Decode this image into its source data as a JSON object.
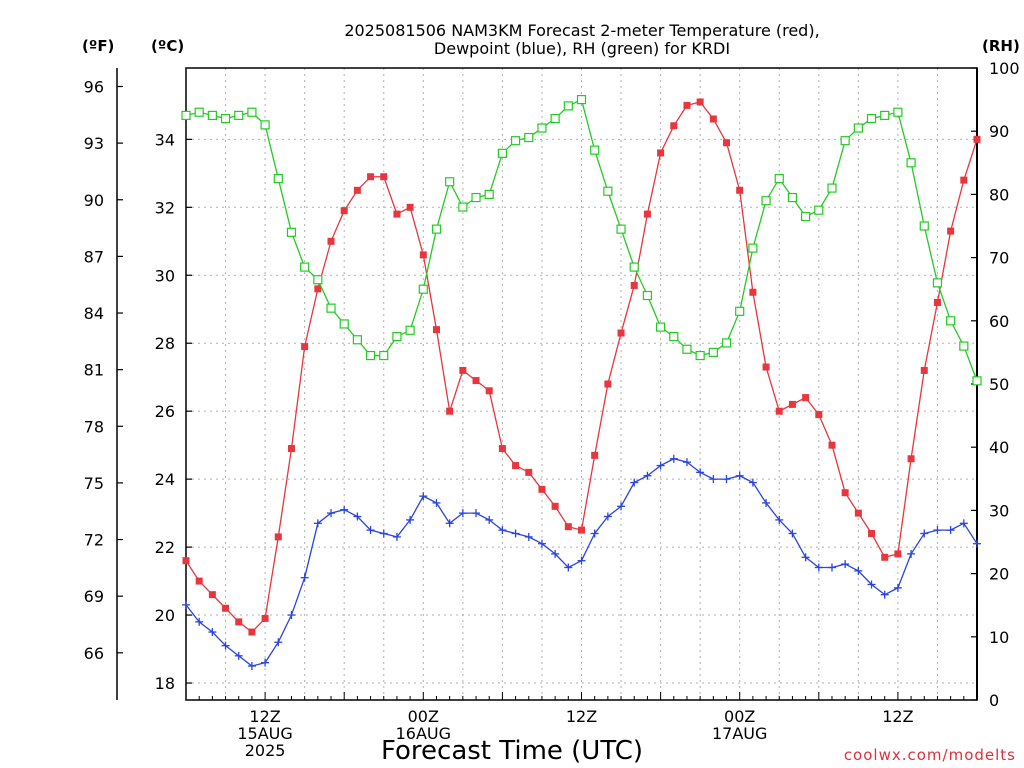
{
  "chart_data": {
    "type": "line",
    "title_line1": "2025081506 NAM3KM Forecast 2-meter Temperature (red),",
    "title_line2": "Dewpoint (blue), RH (green) for KRDI",
    "xlabel": "Forecast Time (UTC)",
    "credit": "coolwx.com/modelts",
    "unit_f": "(ºF)",
    "unit_c": "(ºC)",
    "unit_rh": "(RH)",
    "x_range_hours": [
      0,
      60
    ],
    "x_ticks": [
      {
        "hour": 6,
        "label": "12Z",
        "label2": "15AUG",
        "label3": "2025"
      },
      {
        "hour": 18,
        "label": "00Z",
        "label2": "16AUG",
        "label3": ""
      },
      {
        "hour": 30,
        "label": "12Z",
        "label2": "",
        "label3": ""
      },
      {
        "hour": 42,
        "label": "00Z",
        "label2": "17AUG",
        "label3": ""
      },
      {
        "hour": 54,
        "label": "12Z",
        "label2": "",
        "label3": ""
      }
    ],
    "ylim_c": [
      17.5,
      36.1
    ],
    "yticks_c": [
      18,
      20,
      22,
      24,
      26,
      28,
      30,
      32,
      34
    ],
    "yticks_f": [
      66,
      69,
      72,
      75,
      78,
      81,
      84,
      87,
      90,
      93,
      96
    ],
    "ylim_rh": [
      0,
      100
    ],
    "yticks_rh": [
      0,
      10,
      20,
      30,
      40,
      50,
      60,
      70,
      80,
      90,
      100
    ],
    "colors": {
      "temperature": "#e8363e",
      "dewpoint": "#2a44e0",
      "rh": "#22cc22",
      "grid": "#b0b0b0"
    },
    "series": [
      {
        "name": "Temperature (red)",
        "axis": "c",
        "marker": "filled-square",
        "x": [
          0,
          1,
          2,
          3,
          4,
          5,
          6,
          7,
          8,
          9,
          10,
          11,
          12,
          13,
          14,
          15,
          16,
          17,
          18,
          19,
          20,
          21,
          22,
          23,
          24,
          25,
          26,
          27,
          28,
          29,
          30,
          31,
          32,
          33,
          34,
          35,
          36,
          37,
          38,
          39,
          40,
          41,
          42,
          43,
          44,
          45,
          46,
          47,
          48,
          49,
          50,
          51,
          52,
          53,
          54,
          55,
          56,
          57,
          58,
          59,
          60
        ],
        "values": [
          21.6,
          21.0,
          20.6,
          20.2,
          19.8,
          19.5,
          19.9,
          22.3,
          24.9,
          27.9,
          29.6,
          31.0,
          31.9,
          32.5,
          32.9,
          32.9,
          31.8,
          32.0,
          30.6,
          28.4,
          26.0,
          27.2,
          26.9,
          26.6,
          24.9,
          24.4,
          24.2,
          23.7,
          23.2,
          22.6,
          22.5,
          24.7,
          26.8,
          28.3,
          29.7,
          31.8,
          33.6,
          34.4,
          35.0,
          35.1,
          34.6,
          33.9,
          32.5,
          29.5,
          27.3,
          26.0,
          26.2,
          26.4,
          25.9,
          25.0,
          23.6,
          23.0,
          22.4,
          21.7,
          21.8,
          24.6,
          27.2,
          29.2,
          31.3,
          32.8,
          34.0
        ]
      },
      {
        "name": "Dewpoint (blue)",
        "axis": "c",
        "marker": "plus",
        "x": [
          0,
          1,
          2,
          3,
          4,
          5,
          6,
          7,
          8,
          9,
          10,
          11,
          12,
          13,
          14,
          15,
          16,
          17,
          18,
          19,
          20,
          21,
          22,
          23,
          24,
          25,
          26,
          27,
          28,
          29,
          30,
          31,
          32,
          33,
          34,
          35,
          36,
          37,
          38,
          39,
          40,
          41,
          42,
          43,
          44,
          45,
          46,
          47,
          48,
          49,
          50,
          51,
          52,
          53,
          54,
          55,
          56,
          57,
          58,
          59,
          60
        ],
        "values": [
          20.3,
          19.8,
          19.5,
          19.1,
          18.8,
          18.5,
          18.6,
          19.2,
          20.0,
          21.1,
          22.7,
          23.0,
          23.1,
          22.9,
          22.5,
          22.4,
          22.3,
          22.8,
          23.5,
          23.3,
          22.7,
          23.0,
          23.0,
          22.8,
          22.5,
          22.4,
          22.3,
          22.1,
          21.8,
          21.4,
          21.6,
          22.4,
          22.9,
          23.2,
          23.9,
          24.1,
          24.4,
          24.6,
          24.5,
          24.2,
          24.0,
          24.0,
          24.1,
          23.9,
          23.3,
          22.8,
          22.4,
          21.7,
          21.4,
          21.4,
          21.5,
          21.3,
          20.9,
          20.6,
          20.8,
          21.8,
          22.4,
          22.5,
          22.5,
          22.7,
          22.1
        ]
      },
      {
        "name": "RH (green)",
        "axis": "rh",
        "marker": "open-square",
        "x": [
          0,
          1,
          2,
          3,
          4,
          5,
          6,
          7,
          8,
          9,
          10,
          11,
          12,
          13,
          14,
          15,
          16,
          17,
          18,
          19,
          20,
          21,
          22,
          23,
          24,
          25,
          26,
          27,
          28,
          29,
          30,
          31,
          32,
          33,
          34,
          35,
          36,
          37,
          38,
          39,
          40,
          41,
          42,
          43,
          44,
          45,
          46,
          47,
          48,
          49,
          50,
          51,
          52,
          53,
          54,
          55,
          56,
          57,
          58,
          59,
          60
        ],
        "values": [
          92.5,
          93,
          92.5,
          92,
          92.5,
          93,
          91,
          82.5,
          74,
          68.5,
          66.5,
          62,
          59.5,
          57,
          54.5,
          54.5,
          57.5,
          58.5,
          65,
          74.5,
          82,
          78,
          79.5,
          80,
          86.5,
          88.5,
          89,
          90.5,
          92,
          94,
          95,
          87,
          80.5,
          74.5,
          68.5,
          64,
          59,
          57.5,
          55.5,
          54.5,
          55,
          56.5,
          61.5,
          71.5,
          79,
          82.5,
          79.5,
          76.5,
          77.5,
          81,
          88.5,
          90.5,
          92,
          92.5,
          93,
          85,
          75,
          66,
          60,
          56,
          50.5
        ]
      }
    ]
  }
}
